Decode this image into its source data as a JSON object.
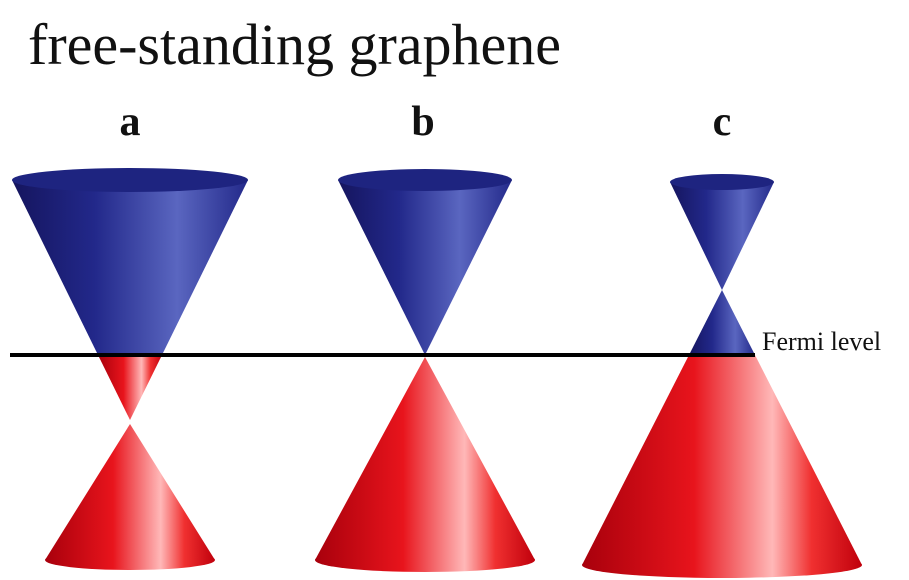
{
  "title": "free-standing graphene",
  "panels": [
    {
      "label": "a"
    },
    {
      "label": "b"
    },
    {
      "label": "c"
    }
  ],
  "fermi_label": "Fermi level"
}
